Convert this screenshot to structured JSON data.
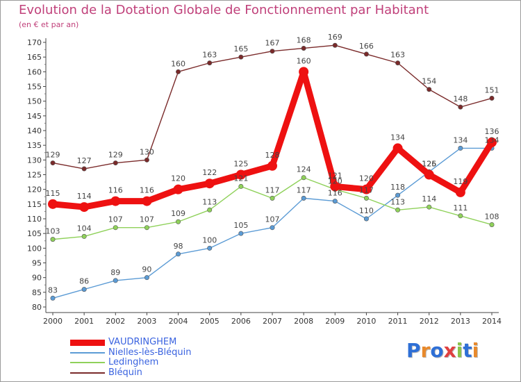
{
  "header": {
    "title": "Evolution de la Dotation Globale de Fonctionnement par Habitant",
    "subtitle": "(en € et par an)"
  },
  "logo": {
    "text": "Proxiti",
    "colors": [
      "#2e6fd6",
      "#e8892b",
      "#2e6fd6",
      "#e04040",
      "#8bc34a",
      "#2e6fd6",
      "#e8892b"
    ]
  },
  "chart_data": {
    "type": "line",
    "title": "Evolution de la Dotation Globale de Fonctionnement par Habitant",
    "subtitle": "(en € et par an)",
    "xlabel": "",
    "ylabel": "",
    "ylim": [
      80,
      170
    ],
    "ytick_step": 5,
    "grid": false,
    "categories": [
      "2000",
      "2001",
      "2002",
      "2003",
      "2004",
      "2005",
      "2006",
      "2007",
      "2008",
      "2009",
      "2010",
      "2011",
      "2012",
      "2013",
      "2014"
    ],
    "series": [
      {
        "name": "VAUDRINGHEM",
        "color": "#ee1111",
        "emphasis": true,
        "values": [
          115,
          114,
          116,
          116,
          120,
          122,
          125,
          128,
          160,
          121,
          120,
          134,
          125,
          119,
          136
        ]
      },
      {
        "name": "Nielles-lès-Bléquin",
        "color": "#5b9bd5",
        "emphasis": false,
        "values": [
          83,
          86,
          89,
          90,
          98,
          100,
          105,
          107,
          117,
          116,
          110,
          118,
          126,
          134,
          134
        ]
      },
      {
        "name": "Ledinghem",
        "color": "#8fd15a",
        "emphasis": false,
        "values": [
          103,
          104,
          107,
          107,
          109,
          113,
          121,
          117,
          124,
          120,
          117,
          113,
          114,
          111,
          108
        ]
      },
      {
        "name": "Bléquin",
        "color": "#7a2a2a",
        "emphasis": false,
        "values": [
          129,
          127,
          129,
          130,
          160,
          163,
          165,
          167,
          168,
          169,
          166,
          163,
          154,
          148,
          151
        ]
      }
    ],
    "legend_position": "bottom-left"
  }
}
